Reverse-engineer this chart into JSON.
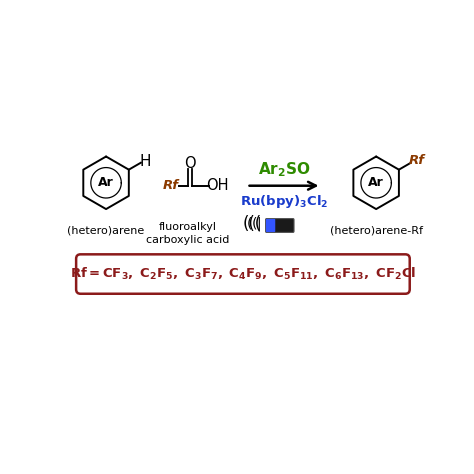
{
  "bg_color": "#ffffff",
  "black": "#000000",
  "dark_red": "#8B1A1A",
  "green": "#2E8B00",
  "blue": "#1a3ccc",
  "brown_rf": "#8B3A00",
  "box_edge_color": "#8B1A1A",
  "box_face_color": "#ffffff",
  "label_hetero_arene": "(hetero)arene",
  "label_fluoroalkyl": "fluoroalkyl",
  "label_carboxylic": "carboxylic acid",
  "label_hetero_arene_rf": "(hetero)arene-Rf",
  "figsize": [
    4.74,
    4.74
  ],
  "dpi": 100,
  "xlim": [
    0,
    10
  ],
  "ylim": [
    0,
    10
  ]
}
